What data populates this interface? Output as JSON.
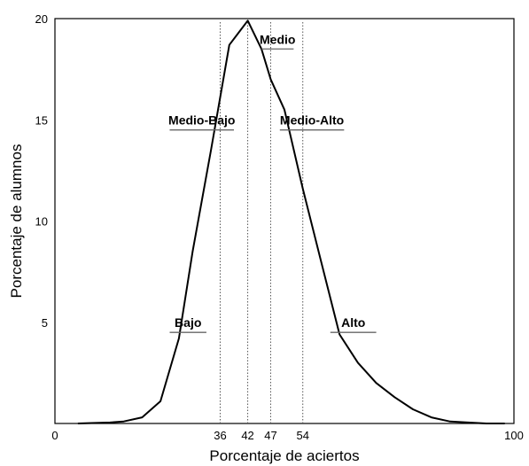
{
  "chart_data": {
    "type": "line",
    "xlabel": "Porcentaje de aciertos",
    "ylabel": "Porcentaje de alumnos",
    "xlim": [
      0,
      100
    ],
    "ylim": [
      0,
      20
    ],
    "grid": false,
    "x_ticks": [
      "0",
      "36",
      "42",
      "47",
      "54",
      "100"
    ],
    "y_ticks": [
      "5",
      "10",
      "15",
      "20"
    ],
    "series": [
      {
        "x": [
          5,
          8,
          12,
          15,
          19,
          23,
          27,
          30,
          34,
          38,
          40,
          42,
          45,
          47,
          50,
          54,
          58,
          62,
          66,
          70,
          74,
          78,
          82,
          86,
          90,
          94,
          98
        ],
        "y": [
          0.0,
          0.02,
          0.05,
          0.1,
          0.3,
          1.1,
          4.2,
          8.5,
          13.5,
          18.7,
          19.3,
          19.9,
          18.5,
          17.0,
          15.5,
          11.6,
          8.0,
          4.4,
          3.0,
          2.0,
          1.3,
          0.7,
          0.3,
          0.1,
          0.05,
          0.0,
          0.0
        ]
      }
    ],
    "reference_lines": [
      36,
      42,
      47,
      54
    ],
    "annotations": [
      {
        "text": "Medio",
        "x_from": 45,
        "x_to": 52,
        "y": 18.5
      },
      {
        "text": "Medio-Bajo",
        "x_from": 25,
        "x_to": 39,
        "y": 14.5
      },
      {
        "text": "Medio-Alto",
        "x_from": 49,
        "x_to": 63,
        "y": 14.5
      },
      {
        "text": "Bajo",
        "x_from": 25,
        "x_to": 33,
        "y": 4.5
      },
      {
        "text": "Alto",
        "x_from": 60,
        "x_to": 70,
        "y": 4.5
      }
    ]
  }
}
